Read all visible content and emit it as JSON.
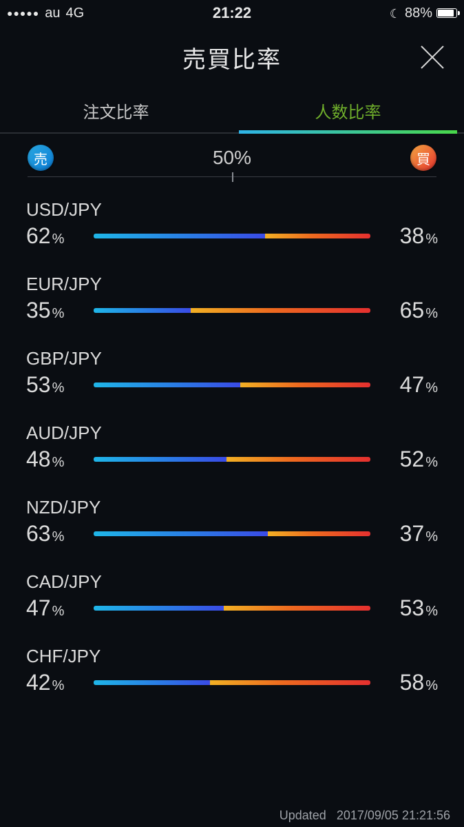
{
  "statusBar": {
    "signalDots": "●●●●●",
    "carrier": "au",
    "network": "4G",
    "time": "21:22",
    "dndIcon": "moon",
    "batteryPercent": "88%",
    "batteryFill": 88
  },
  "header": {
    "title": "売買比率",
    "closeIcon": "close"
  },
  "tabs": [
    {
      "label": "注文比率",
      "active": false
    },
    {
      "label": "人数比率",
      "active": true
    }
  ],
  "legend": {
    "sellBadge": {
      "label": "売",
      "bg": "linear-gradient(135deg,#2aa8e0,#0a7bd6)"
    },
    "midLabel": "50%",
    "buyBadge": {
      "label": "買",
      "bg": "linear-gradient(135deg,#f5a742,#e5312d)"
    }
  },
  "colors": {
    "sellGradient": "linear-gradient(90deg,#1fb6e8 0%, #2a7de6 55%, #3a4be6 100%)",
    "buyGradient": "linear-gradient(90deg,#f2b024 0%, #ee6a1f 45%, #e5302f 100%)",
    "background": "#0a0d12",
    "text": "#dcdcdc",
    "tabActive": "#6fae2b",
    "tabUnderline": "linear-gradient(90deg,#2fb4e8,#49d84a)"
  },
  "rows": [
    {
      "pair": "USD/JPY",
      "sell": 62,
      "buy": 38
    },
    {
      "pair": "EUR/JPY",
      "sell": 35,
      "buy": 65
    },
    {
      "pair": "GBP/JPY",
      "sell": 53,
      "buy": 47
    },
    {
      "pair": "AUD/JPY",
      "sell": 48,
      "buy": 52
    },
    {
      "pair": "NZD/JPY",
      "sell": 63,
      "buy": 37
    },
    {
      "pair": "CAD/JPY",
      "sell": 47,
      "buy": 53
    },
    {
      "pair": "CHF/JPY",
      "sell": 42,
      "buy": 58
    }
  ],
  "footer": {
    "updatedLabel": "Updated",
    "updatedValue": "2017/09/05 21:21:56"
  },
  "percentUnit": "%"
}
